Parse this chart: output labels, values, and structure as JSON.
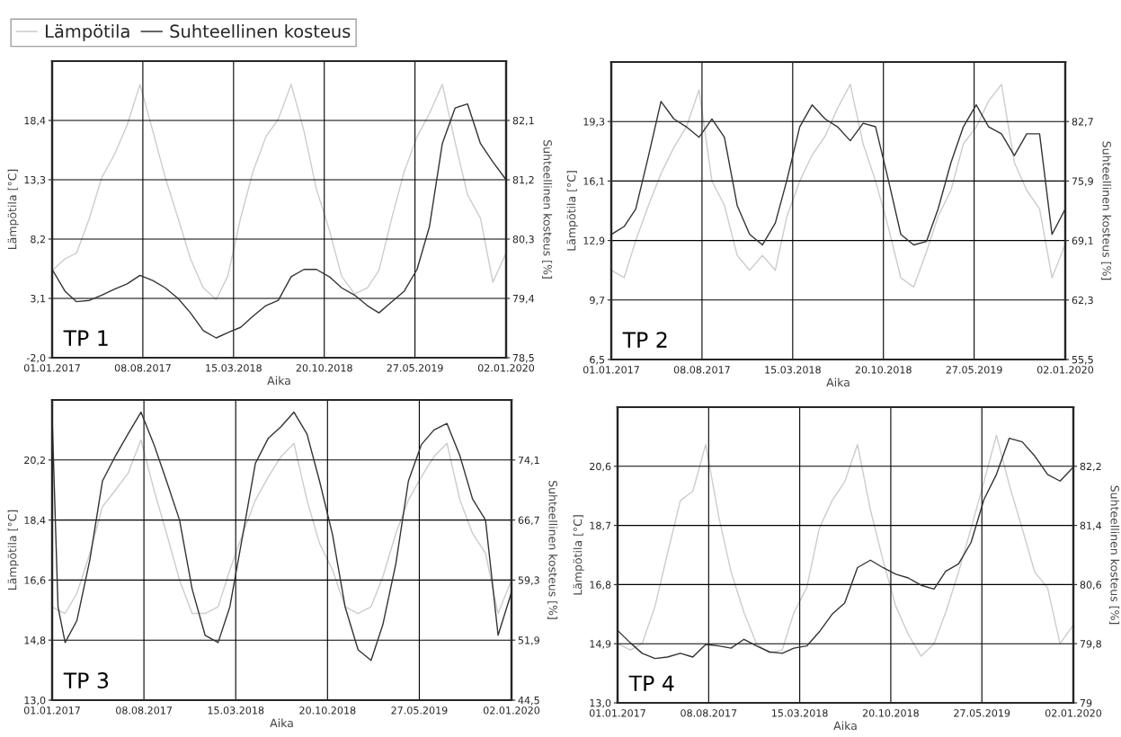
{
  "chart_data": [
    {
      "type": "line",
      "xlabel": "Aika",
      "ylabel": "Lämpötila [°C]",
      "y2label": "Suhteellinen kosteus [%]",
      "annotations": [
        "TP 1"
      ],
      "grid": true,
      "legend": "top left",
      "x": [
        "2017-01-01",
        "2017-02-01",
        "2017-03-01",
        "2017-04-01",
        "2017-05-01",
        "2017-06-01",
        "2017-07-01",
        "2017-08-01",
        "2017-09-01",
        "2017-10-01",
        "2017-11-01",
        "2017-12-01",
        "2018-01-01",
        "2018-02-01",
        "2018-03-01",
        "2018-04-01",
        "2018-05-01",
        "2018-06-01",
        "2018-07-01",
        "2018-08-01",
        "2018-09-01",
        "2018-10-01",
        "2018-11-01",
        "2018-12-01",
        "2019-01-01",
        "2019-02-01",
        "2019-03-01",
        "2019-04-01",
        "2019-05-01",
        "2019-06-01",
        "2019-07-01",
        "2019-08-01",
        "2019-09-01",
        "2019-10-01",
        "2019-11-01",
        "2019-12-01",
        "2020-01-02"
      ],
      "xlim": [
        "2017-01-01",
        "2020-01-02"
      ],
      "xticks": [
        {
          "value": "2017-01-01",
          "label": "01.01.2017"
        },
        {
          "value": "2017-08-08",
          "label": "08.08.2017"
        },
        {
          "value": "2018-03-15",
          "label": "15.03.2018"
        },
        {
          "value": "2018-10-20",
          "label": "20.10.2018"
        },
        {
          "value": "2019-05-27",
          "label": "27.05.2019"
        },
        {
          "value": "2020-01-02",
          "label": "02.01.2020"
        }
      ],
      "ylim": [
        -2.0,
        23.5
      ],
      "yticks": [
        {
          "value": -2.0,
          "label": "-2,0"
        },
        {
          "value": 3.1,
          "label": "3,1"
        },
        {
          "value": 8.2,
          "label": "8,2"
        },
        {
          "value": 13.3,
          "label": "13,3"
        },
        {
          "value": 18.4,
          "label": "18,4"
        }
      ],
      "y2lim": [
        78.5,
        83.0
      ],
      "y2ticks": [
        {
          "value": 78.5,
          "label": "78,5"
        },
        {
          "value": 79.4,
          "label": "79,4"
        },
        {
          "value": 80.3,
          "label": "80,3"
        },
        {
          "value": 81.2,
          "label": "81,2"
        },
        {
          "value": 82.1,
          "label": "82,1"
        }
      ],
      "series": [
        {
          "name": "Lämpötila",
          "color": "#cccccc",
          "values": [
            5.5,
            6.5,
            7.0,
            10.0,
            13.5,
            15.5,
            18.0,
            21.5,
            17.5,
            13.5,
            10.0,
            6.5,
            4.0,
            3.0,
            5.0,
            10.0,
            14.0,
            17.0,
            18.5,
            21.5,
            17.5,
            12.5,
            9.0,
            5.0,
            3.5,
            4.0,
            5.5,
            10.0,
            14.0,
            17.0,
            19.0,
            21.5,
            16.5,
            12.0,
            10.0,
            4.5,
            7.0
          ]
        },
        {
          "name": "Suhteellinen kosteus",
          "color": "#333333",
          "axis": "y2",
          "values": [
            79.84,
            79.51,
            79.35,
            79.37,
            79.45,
            79.54,
            79.62,
            79.75,
            79.67,
            79.56,
            79.4,
            79.18,
            78.91,
            78.8,
            78.88,
            78.96,
            79.13,
            79.29,
            79.37,
            79.73,
            79.84,
            79.84,
            79.73,
            79.56,
            79.45,
            79.29,
            79.18,
            79.35,
            79.51,
            79.84,
            80.49,
            81.75,
            82.29,
            82.35,
            81.75,
            81.47,
            81.2
          ]
        }
      ]
    },
    {
      "type": "line",
      "xlabel": "Aika",
      "ylabel": "Lämpötila [°C]",
      "y2label": "Suhteellinen kosteus [%]",
      "annotations": [
        "TP 2"
      ],
      "grid": true,
      "x": [
        "2017-01-01",
        "2017-02-01",
        "2017-03-01",
        "2017-04-01",
        "2017-05-01",
        "2017-06-01",
        "2017-07-01",
        "2017-08-01",
        "2017-09-01",
        "2017-10-01",
        "2017-11-01",
        "2017-12-01",
        "2018-01-01",
        "2018-02-01",
        "2018-03-01",
        "2018-04-01",
        "2018-05-01",
        "2018-06-01",
        "2018-07-01",
        "2018-08-01",
        "2018-09-01",
        "2018-10-01",
        "2018-11-01",
        "2018-12-01",
        "2019-01-01",
        "2019-02-01",
        "2019-03-01",
        "2019-04-01",
        "2019-05-01",
        "2019-06-01",
        "2019-07-01",
        "2019-08-01",
        "2019-09-01",
        "2019-10-01",
        "2019-11-01",
        "2019-12-01",
        "2020-01-02"
      ],
      "xlim": [
        "2017-01-01",
        "2020-01-02"
      ],
      "xticks": [
        {
          "value": "2017-01-01",
          "label": "01.01.2017"
        },
        {
          "value": "2017-08-08",
          "label": "08.08.2017"
        },
        {
          "value": "2018-03-15",
          "label": "15.03.2018"
        },
        {
          "value": "2018-10-20",
          "label": "20.10.2018"
        },
        {
          "value": "2019-05-27",
          "label": "27.05.2019"
        },
        {
          "value": "2020-01-02",
          "label": "02.01.2020"
        }
      ],
      "ylim": [
        6.5,
        22.5
      ],
      "yticks": [
        {
          "value": 6.5,
          "label": "6,5"
        },
        {
          "value": 9.7,
          "label": "9,7"
        },
        {
          "value": 12.9,
          "label": "12,9"
        },
        {
          "value": 16.1,
          "label": "16,1"
        },
        {
          "value": 19.3,
          "label": "19,3"
        }
      ],
      "y2lim": [
        55.5,
        89.5
      ],
      "y2ticks": [
        {
          "value": 55.5,
          "label": "55,5"
        },
        {
          "value": 62.3,
          "label": "62,3"
        },
        {
          "value": 69.1,
          "label": "69,1"
        },
        {
          "value": 75.9,
          "label": "75,9"
        },
        {
          "value": 82.7,
          "label": "82,7"
        }
      ],
      "series": [
        {
          "color": "#cccccc",
          "values": [
            11.3,
            10.9,
            12.9,
            14.8,
            16.5,
            17.9,
            19.0,
            21.0,
            16.1,
            14.8,
            12.1,
            11.3,
            12.1,
            11.3,
            14.2,
            16.1,
            17.5,
            18.5,
            20.0,
            21.3,
            18.1,
            16.1,
            13.6,
            10.9,
            10.4,
            12.3,
            14.2,
            15.6,
            18.1,
            19.0,
            20.4,
            21.3,
            17.1,
            15.6,
            14.6,
            10.9,
            12.7
          ]
        },
        {
          "color": "#333333",
          "axis": "y2",
          "values": [
            69.8,
            70.7,
            72.7,
            78.8,
            85.0,
            83.0,
            82.1,
            80.9,
            83.0,
            80.9,
            73.1,
            69.8,
            68.6,
            71.1,
            76.0,
            82.1,
            84.6,
            83.0,
            82.1,
            80.5,
            82.5,
            82.1,
            76.0,
            69.8,
            68.6,
            69.0,
            72.7,
            78.0,
            82.1,
            84.6,
            82.1,
            81.3,
            78.8,
            81.3,
            81.3,
            69.8,
            72.7
          ]
        }
      ]
    },
    {
      "type": "line",
      "xlabel": "Aika",
      "ylabel": "Lämpötila [°C]",
      "y2label": "Suhteellinen kosteus [%]",
      "annotations": [
        "TP 3"
      ],
      "grid": true,
      "x": [
        "2017-01-01",
        "2017-01-15",
        "2017-02-01",
        "2017-03-01",
        "2017-04-01",
        "2017-05-01",
        "2017-06-01",
        "2017-07-01",
        "2017-08-01",
        "2017-09-01",
        "2017-10-01",
        "2017-11-01",
        "2017-12-01",
        "2018-01-01",
        "2018-02-01",
        "2018-03-01",
        "2018-04-01",
        "2018-05-01",
        "2018-06-01",
        "2018-07-01",
        "2018-08-01",
        "2018-09-01",
        "2018-10-01",
        "2018-11-01",
        "2018-12-01",
        "2019-01-01",
        "2019-02-01",
        "2019-03-01",
        "2019-04-01",
        "2019-05-01",
        "2019-06-01",
        "2019-07-01",
        "2019-08-01",
        "2019-09-01",
        "2019-10-01",
        "2019-11-01",
        "2019-12-01",
        "2020-01-02"
      ],
      "xlim": [
        "2017-01-01",
        "2020-01-02"
      ],
      "xticks": [
        {
          "value": "2017-01-01",
          "label": "01.01.2017"
        },
        {
          "value": "2017-08-08",
          "label": "08.08.2017"
        },
        {
          "value": "2018-03-15",
          "label": "15.03.2018"
        },
        {
          "value": "2018-10-20",
          "label": "20.10.2018"
        },
        {
          "value": "2019-05-27",
          "label": "27.05.2019"
        },
        {
          "value": "2020-01-02",
          "label": "02.01.2020"
        }
      ],
      "ylim": [
        13.0,
        22.0
      ],
      "yticks": [
        {
          "value": 13.0,
          "label": "13,0"
        },
        {
          "value": 14.8,
          "label": "14,8"
        },
        {
          "value": 16.6,
          "label": "16,6"
        },
        {
          "value": 18.4,
          "label": "18,4"
        },
        {
          "value": 20.2,
          "label": "20,2"
        }
      ],
      "y2lim": [
        44.5,
        81.5
      ],
      "y2ticks": [
        {
          "value": 44.5,
          "label": "44,5"
        },
        {
          "value": 51.9,
          "label": "51,9"
        },
        {
          "value": 59.3,
          "label": "59,3"
        },
        {
          "value": 66.7,
          "label": "66,7"
        },
        {
          "value": 74.1,
          "label": "74,1"
        }
      ],
      "series": [
        {
          "color": "#cccccc",
          "values": [
            15.8,
            15.7,
            15.6,
            16.2,
            17.4,
            18.8,
            19.3,
            19.8,
            20.8,
            19.3,
            18.0,
            16.6,
            15.6,
            15.6,
            15.8,
            16.9,
            18.0,
            19.0,
            19.7,
            20.3,
            20.7,
            19.0,
            17.7,
            16.9,
            15.8,
            15.6,
            15.8,
            16.7,
            18.0,
            19.0,
            19.7,
            20.3,
            20.7,
            19.0,
            18.0,
            17.4,
            15.6,
            16.6
          ]
        },
        {
          "color": "#333333",
          "axis": "y2",
          "values": [
            79.5,
            56.0,
            51.6,
            54.3,
            61.8,
            71.5,
            74.6,
            77.3,
            80.0,
            76.0,
            71.5,
            66.7,
            58.2,
            52.5,
            51.6,
            56.0,
            64.9,
            73.7,
            76.8,
            78.2,
            80.0,
            77.3,
            71.5,
            64.9,
            56.0,
            50.7,
            49.4,
            53.8,
            61.3,
            71.5,
            76.0,
            77.8,
            78.6,
            74.6,
            69.3,
            66.7,
            52.5,
            57.8
          ]
        }
      ]
    },
    {
      "type": "line",
      "xlabel": "Aika",
      "ylabel": "Lämpötila [°C]",
      "y2label": "Suhteellinen kosteus [%]",
      "annotations": [
        "TP 4"
      ],
      "grid": true,
      "x": [
        "2017-01-01",
        "2017-02-01",
        "2017-03-01",
        "2017-04-01",
        "2017-05-01",
        "2017-06-01",
        "2017-07-01",
        "2017-08-01",
        "2017-09-01",
        "2017-10-01",
        "2017-11-01",
        "2017-12-01",
        "2018-01-01",
        "2018-02-01",
        "2018-03-01",
        "2018-04-01",
        "2018-05-01",
        "2018-06-01",
        "2018-07-01",
        "2018-08-01",
        "2018-09-01",
        "2018-10-01",
        "2018-11-01",
        "2018-12-01",
        "2019-01-01",
        "2019-02-01",
        "2019-03-01",
        "2019-04-01",
        "2019-05-01",
        "2019-06-01",
        "2019-07-01",
        "2019-08-01",
        "2019-09-01",
        "2019-10-01",
        "2019-11-01",
        "2019-12-01",
        "2020-01-02"
      ],
      "xlim": [
        "2017-01-01",
        "2020-01-02"
      ],
      "xticks": [
        {
          "value": "2017-01-01",
          "label": "01.01.2017"
        },
        {
          "value": "2017-08-08",
          "label": "08.08.2017"
        },
        {
          "value": "2018-03-15",
          "label": "15.03.2018"
        },
        {
          "value": "2018-10-20",
          "label": "20.10.2018"
        },
        {
          "value": "2019-05-27",
          "label": "27.05.2019"
        },
        {
          "value": "2020-01-02",
          "label": "02.01.2020"
        }
      ],
      "ylim": [
        13.0,
        22.5
      ],
      "yticks": [
        {
          "value": 13.0,
          "label": "13,0"
        },
        {
          "value": 14.9,
          "label": "14,9"
        },
        {
          "value": 16.8,
          "label": "16,8"
        },
        {
          "value": 18.7,
          "label": "18,7"
        },
        {
          "value": 20.6,
          "label": "20,6"
        }
      ],
      "y2lim": [
        79.0,
        83.0
      ],
      "y2ticks": [
        79,
        {
          "value": 79.8,
          "label": "79,8"
        },
        {
          "value": 80.6,
          "label": "80,6"
        },
        {
          "value": 81.4,
          "label": "81,4"
        },
        {
          "value": 82.2,
          "label": "82,2"
        }
      ],
      "series": [
        {
          "color": "#cccccc",
          "values": [
            14.9,
            14.7,
            14.9,
            16.1,
            17.8,
            19.5,
            19.8,
            21.3,
            19.0,
            17.2,
            15.9,
            14.9,
            14.6,
            14.7,
            15.9,
            16.7,
            18.6,
            19.5,
            20.1,
            21.3,
            19.2,
            17.6,
            16.1,
            15.2,
            14.5,
            14.9,
            15.9,
            17.2,
            18.6,
            20.1,
            21.6,
            20.0,
            18.6,
            17.2,
            16.7,
            14.9,
            15.5
          ]
        },
        {
          "color": "#333333",
          "axis": "y2",
          "values": [
            79.98,
            79.81,
            79.67,
            79.6,
            79.62,
            79.67,
            79.62,
            79.79,
            79.77,
            79.74,
            79.86,
            79.77,
            79.69,
            79.67,
            79.74,
            79.77,
            79.96,
            80.2,
            80.35,
            80.83,
            80.93,
            80.83,
            80.74,
            80.69,
            80.59,
            80.54,
            80.78,
            80.88,
            81.17,
            81.75,
            82.09,
            82.58,
            82.53,
            82.34,
            82.09,
            82.0,
            82.19
          ]
        }
      ]
    }
  ]
}
